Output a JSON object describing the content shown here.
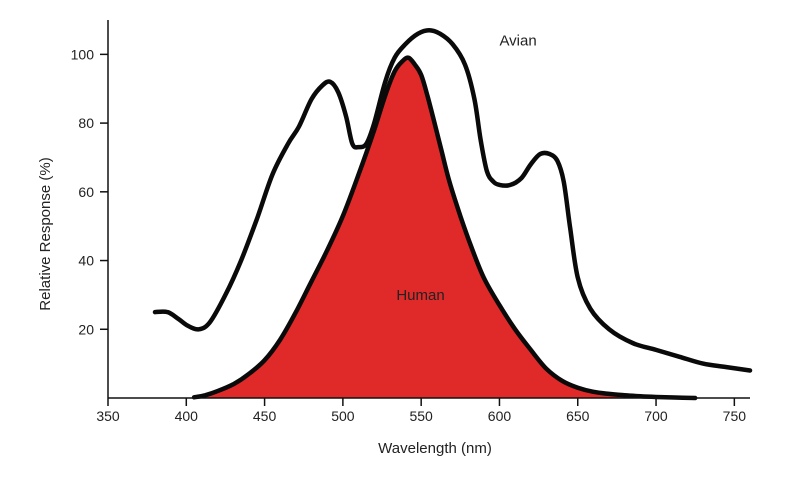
{
  "chart_data": {
    "type": "line",
    "xlabel": "Wavelength (nm)",
    "ylabel": "Relative Response (%)",
    "xlim": [
      350,
      760
    ],
    "ylim": [
      0,
      110
    ],
    "x_ticks": [
      350,
      400,
      450,
      500,
      550,
      600,
      650,
      700,
      750
    ],
    "y_ticks": [
      20,
      40,
      60,
      80,
      100
    ],
    "grid": false,
    "legend": "none",
    "series": [
      {
        "name": "Avian",
        "fill": false,
        "color": "#0a0a0a",
        "x": [
          380,
          388,
          395,
          401,
          408,
          415,
          425,
          435,
          445,
          455,
          465,
          472,
          480,
          487,
          492,
          497,
          502,
          506,
          510,
          515,
          520,
          527,
          533,
          540,
          548,
          555,
          562,
          570,
          578,
          584,
          588,
          592,
          596,
          600,
          607,
          614,
          620,
          626,
          632,
          637,
          641,
          645,
          650,
          658,
          670,
          685,
          700,
          715,
          730,
          745,
          760
        ],
        "y": [
          25,
          25,
          23,
          21,
          20,
          22,
          30,
          40,
          52,
          65,
          74,
          79,
          87,
          91,
          92,
          89,
          82,
          74,
          73,
          74,
          80,
          92,
          99,
          103,
          106,
          107,
          106,
          103,
          97,
          87,
          75,
          66,
          63,
          62,
          62,
          64,
          68,
          71,
          71,
          69,
          63,
          50,
          35,
          26,
          20,
          16,
          14,
          12,
          10,
          9,
          8
        ]
      },
      {
        "name": "Human",
        "fill": true,
        "color": "#e02a2a",
        "x": [
          405,
          412,
          420,
          430,
          440,
          450,
          460,
          470,
          480,
          490,
          500,
          510,
          520,
          527,
          533,
          538,
          542,
          546,
          550,
          554,
          558,
          563,
          568,
          575,
          582,
          590,
          600,
          610,
          620,
          630,
          640,
          650,
          660,
          670,
          680,
          690,
          700,
          712,
          725
        ],
        "y": [
          0.2,
          0.8,
          2,
          4,
          7,
          11,
          17,
          25,
          34,
          43,
          53,
          65,
          78,
          88,
          95,
          98,
          99,
          97,
          94,
          88,
          81,
          72,
          63,
          53,
          44,
          35,
          27,
          20,
          14,
          8.5,
          5,
          3,
          1.8,
          1.2,
          0.8,
          0.5,
          0.3,
          0.15,
          0
        ]
      }
    ]
  }
}
